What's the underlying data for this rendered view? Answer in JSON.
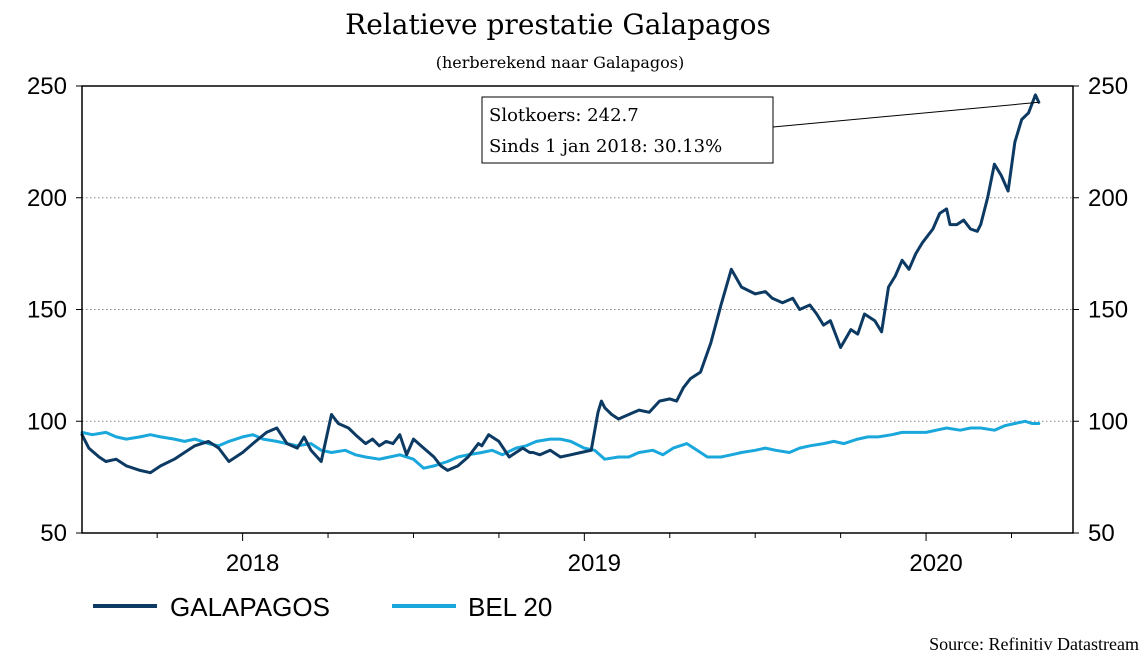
{
  "chart_data": {
    "type": "line",
    "title": "Relatieve prestatie Galapagos",
    "subtitle": "(herberekend naar Galapagos)",
    "ylim": [
      50,
      250
    ],
    "y_ticks": [
      50,
      100,
      150,
      200,
      250
    ],
    "x_tick_labels": [
      "2018",
      "2019",
      "2020"
    ],
    "x_tick_positions": [
      2018.0,
      2019.0,
      2020.0
    ],
    "xlim": [
      2017.53,
      2020.43
    ],
    "grid": true,
    "legend_position": "bottom-left",
    "annotation": {
      "line1": "Slotkoers: 242.7",
      "line2": "Sinds 1 jan 2018: 30.13%",
      "point": [
        2020.33,
        242.7
      ]
    },
    "source": "Source: Refinitiv Datastream",
    "series": [
      {
        "name": "GALAPAGOS",
        "color": "#0d3a63",
        "x": [
          2017.53,
          2017.55,
          2017.58,
          2017.6,
          2017.63,
          2017.66,
          2017.7,
          2017.73,
          2017.76,
          2017.8,
          2017.83,
          2017.86,
          2017.9,
          2017.93,
          2017.96,
          2018.0,
          2018.03,
          2018.07,
          2018.1,
          2018.13,
          2018.16,
          2018.18,
          2018.2,
          2018.23,
          2018.26,
          2018.28,
          2018.31,
          2018.33,
          2018.36,
          2018.38,
          2018.4,
          2018.42,
          2018.44,
          2018.46,
          2018.48,
          2018.5,
          2018.53,
          2018.56,
          2018.58,
          2018.6,
          2018.63,
          2018.66,
          2018.69,
          2018.7,
          2018.72,
          2018.75,
          2018.78,
          2018.8,
          2018.82,
          2018.84,
          2018.85,
          2018.87,
          2018.9,
          2018.93,
          2018.96,
          2018.99,
          2019.02,
          2019.04,
          2019.05,
          2019.06,
          2019.08,
          2019.1,
          2019.13,
          2019.16,
          2019.19,
          2019.22,
          2019.25,
          2019.27,
          2019.29,
          2019.31,
          2019.34,
          2019.37,
          2019.4,
          2019.43,
          2019.46,
          2019.5,
          2019.53,
          2019.55,
          2019.58,
          2019.61,
          2019.63,
          2019.66,
          2019.68,
          2019.7,
          2019.72,
          2019.75,
          2019.78,
          2019.8,
          2019.82,
          2019.85,
          2019.87,
          2019.89,
          2019.91,
          2019.93,
          2019.95,
          2019.97,
          2019.99,
          2020.02,
          2020.04,
          2020.06,
          2020.07,
          2020.09,
          2020.11,
          2020.13,
          2020.15,
          2020.16,
          2020.18,
          2020.2,
          2020.22,
          2020.24,
          2020.26,
          2020.28,
          2020.3,
          2020.31,
          2020.32,
          2020.33
        ],
        "y": [
          94,
          88,
          84,
          82,
          83,
          80,
          78,
          77,
          80,
          83,
          86,
          89,
          91,
          88,
          82,
          86,
          90,
          95,
          97,
          90,
          88,
          93,
          87,
          82,
          103,
          99,
          97,
          94,
          90,
          92,
          89,
          91,
          90,
          94,
          85,
          92,
          88,
          84,
          80,
          78,
          80,
          84,
          90,
          89,
          94,
          91,
          84,
          86,
          88,
          86,
          86,
          85,
          87,
          84,
          85,
          86,
          87,
          104,
          109,
          106,
          103,
          101,
          103,
          105,
          104,
          109,
          110,
          109,
          115,
          119,
          122,
          135,
          152,
          168,
          160,
          157,
          158,
          155,
          153,
          155,
          150,
          152,
          148,
          143,
          145,
          133,
          141,
          139,
          148,
          145,
          140,
          160,
          165,
          172,
          168,
          175,
          180,
          186,
          193,
          195,
          188,
          188,
          190,
          186,
          185,
          188,
          200,
          215,
          210,
          203,
          225,
          235,
          238,
          242,
          246,
          242.7
        ]
      },
      {
        "name": "BEL 20",
        "color": "#1aa7dc",
        "x": [
          2017.53,
          2017.56,
          2017.6,
          2017.63,
          2017.66,
          2017.7,
          2017.73,
          2017.76,
          2017.8,
          2017.83,
          2017.86,
          2017.9,
          2017.93,
          2017.96,
          2018.0,
          2018.03,
          2018.06,
          2018.1,
          2018.13,
          2018.16,
          2018.2,
          2018.23,
          2018.26,
          2018.3,
          2018.33,
          2018.36,
          2018.4,
          2018.43,
          2018.46,
          2018.5,
          2018.53,
          2018.56,
          2018.6,
          2018.63,
          2018.66,
          2018.7,
          2018.73,
          2018.76,
          2018.8,
          2018.83,
          2018.86,
          2018.9,
          2018.93,
          2018.96,
          2019.0,
          2019.03,
          2019.06,
          2019.1,
          2019.13,
          2019.16,
          2019.2,
          2019.23,
          2019.26,
          2019.3,
          2019.33,
          2019.36,
          2019.4,
          2019.43,
          2019.46,
          2019.5,
          2019.53,
          2019.56,
          2019.6,
          2019.63,
          2019.66,
          2019.7,
          2019.73,
          2019.76,
          2019.8,
          2019.83,
          2019.86,
          2019.9,
          2019.93,
          2019.96,
          2020.0,
          2020.03,
          2020.06,
          2020.1,
          2020.13,
          2020.16,
          2020.2,
          2020.23,
          2020.26,
          2020.29,
          2020.31,
          2020.33
        ],
        "y": [
          95,
          94,
          95,
          93,
          92,
          93,
          94,
          93,
          92,
          91,
          92,
          90,
          89,
          91,
          93,
          94,
          92,
          91,
          90,
          89,
          90,
          87,
          86,
          87,
          85,
          84,
          83,
          84,
          85,
          83,
          79,
          80,
          82,
          84,
          85,
          86,
          87,
          85,
          88,
          89,
          91,
          92,
          92,
          91,
          88,
          87,
          83,
          84,
          84,
          86,
          87,
          85,
          88,
          90,
          87,
          84,
          84,
          85,
          86,
          87,
          88,
          87,
          86,
          88,
          89,
          90,
          91,
          90,
          92,
          93,
          93,
          94,
          95,
          95,
          95,
          96,
          97,
          96,
          97,
          97,
          96,
          98,
          99,
          100,
          99,
          99
        ]
      }
    ]
  }
}
